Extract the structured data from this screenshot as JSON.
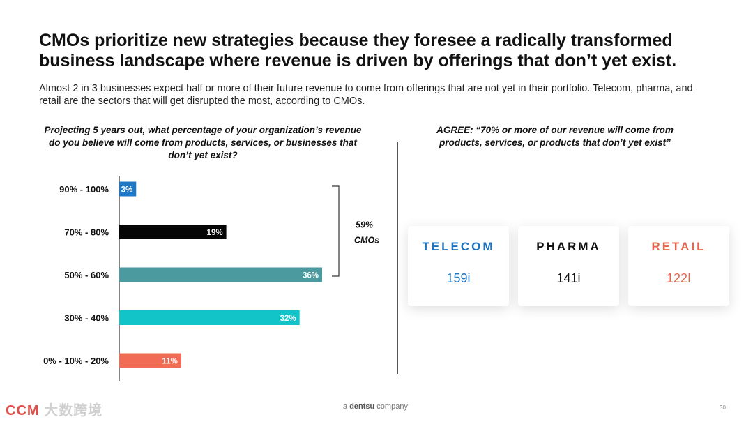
{
  "title": "CMOs prioritize new strategies because they foresee a radically transformed business landscape where revenue is driven by offerings that don’t yet exist.",
  "subtitle": "Almost 2 in 3 businesses expect half or more of their future revenue to come from offerings that are not yet in their portfolio. Telecom, pharma, and retail are the sectors that will get disrupted the most, according to CMOs.",
  "agree_text": "AGREE: “70% or more of our revenue will come from products, services, or products that don’t yet exist”",
  "cards": [
    {
      "name": "TELECOM",
      "value": "159i",
      "color": "#1e73be"
    },
    {
      "name": "PHARMA",
      "value": "141i",
      "color": "#111111"
    },
    {
      "name": "RETAIL",
      "value": "122I",
      "color": "#e8634f"
    }
  ],
  "chart_data": {
    "type": "bar",
    "orientation": "horizontal",
    "title": "Projecting 5 years out, what percentage of your organization’s revenue do you believe will come from products, services, or businesses that don’t yet exist?",
    "categories": [
      "90% - 100%",
      "70% - 80%",
      "50% - 60%",
      "30% - 40%",
      "0% - 10% - 20%"
    ],
    "values": [
      3,
      19,
      36,
      32,
      11
    ],
    "labels": [
      "3%",
      "19%",
      "36%",
      "32%",
      "11%"
    ],
    "colors": [
      "#1e78c8",
      "#050505",
      "#4a9aa0",
      "#12c3c8",
      "#f26b55"
    ],
    "xlim": [
      0,
      36
    ],
    "bracket": {
      "value": "59%",
      "label": "CMOs",
      "from_category": "90% - 100%",
      "to_category": "50% - 60%"
    }
  },
  "footer": {
    "prefix": "a ",
    "brand": "dentsu",
    "suffix": " company"
  },
  "page_number": "30",
  "watermark": {
    "brand": "CCM",
    "text": "大数跨境"
  }
}
